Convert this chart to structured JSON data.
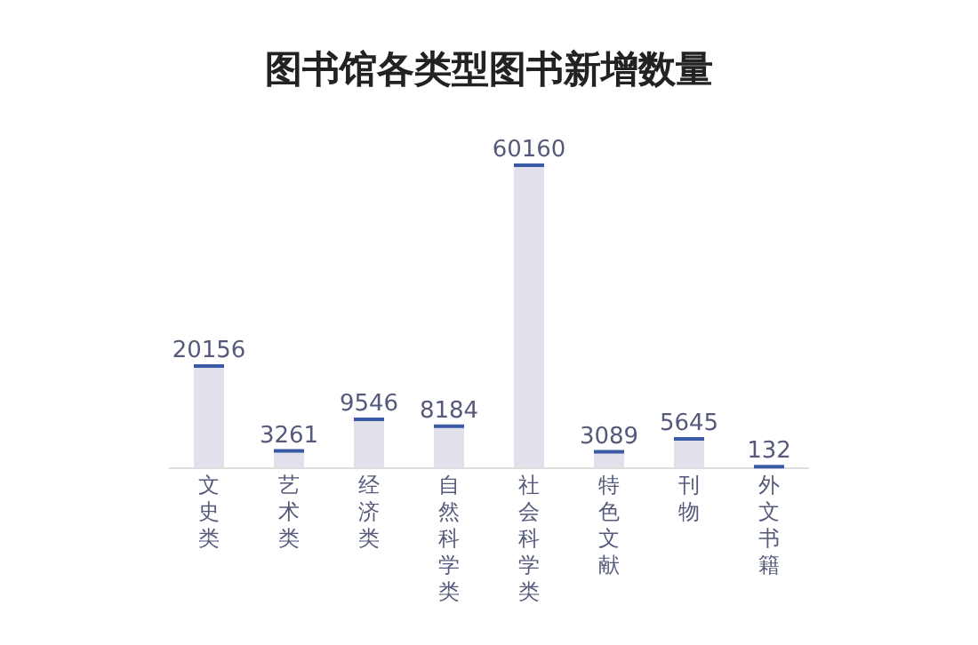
{
  "chart_data": {
    "type": "bar",
    "title": "图书馆各类型图书新增数量",
    "categories": [
      "文史类",
      "艺术类",
      "经济类",
      "自然科学类",
      "社会科学类",
      "特色文献",
      "刊物",
      "外文书籍"
    ],
    "values": [
      20156,
      3261,
      9546,
      8184,
      60160,
      3089,
      5645,
      132
    ],
    "color": "#e1e1eb",
    "data_labels": true
  }
}
